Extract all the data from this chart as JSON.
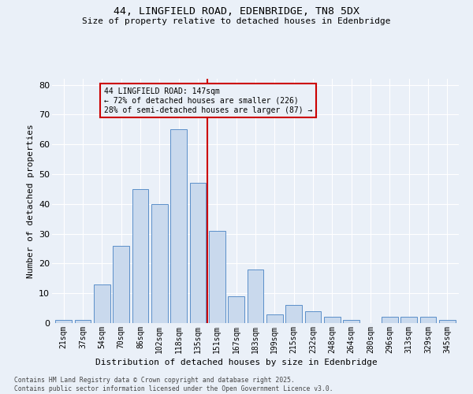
{
  "title_line1": "44, LINGFIELD ROAD, EDENBRIDGE, TN8 5DX",
  "title_line2": "Size of property relative to detached houses in Edenbridge",
  "xlabel": "Distribution of detached houses by size in Edenbridge",
  "ylabel": "Number of detached properties",
  "bar_labels": [
    "21sqm",
    "37sqm",
    "54sqm",
    "70sqm",
    "86sqm",
    "102sqm",
    "118sqm",
    "135sqm",
    "151sqm",
    "167sqm",
    "183sqm",
    "199sqm",
    "215sqm",
    "232sqm",
    "248sqm",
    "264sqm",
    "280sqm",
    "296sqm",
    "313sqm",
    "329sqm",
    "345sqm"
  ],
  "bar_values": [
    1,
    1,
    13,
    26,
    45,
    40,
    65,
    47,
    31,
    9,
    18,
    3,
    6,
    4,
    2,
    1,
    0,
    2,
    2,
    2,
    1
  ],
  "bar_color": "#c9d9ed",
  "bar_edge_color": "#5b8fc9",
  "vline_color": "#cc0000",
  "annotation_box_color": "#cc0000",
  "annotation_line1": "44 LINGFIELD ROAD: 147sqm",
  "annotation_line2": "← 72% of detached houses are smaller (226)",
  "annotation_line3": "28% of semi-detached houses are larger (87) →",
  "ylim": [
    0,
    82
  ],
  "yticks": [
    0,
    10,
    20,
    30,
    40,
    50,
    60,
    70,
    80
  ],
  "background_color": "#eaf0f8",
  "grid_color": "#ffffff",
  "footer_line1": "Contains HM Land Registry data © Crown copyright and database right 2025.",
  "footer_line2": "Contains public sector information licensed under the Open Government Licence v3.0."
}
